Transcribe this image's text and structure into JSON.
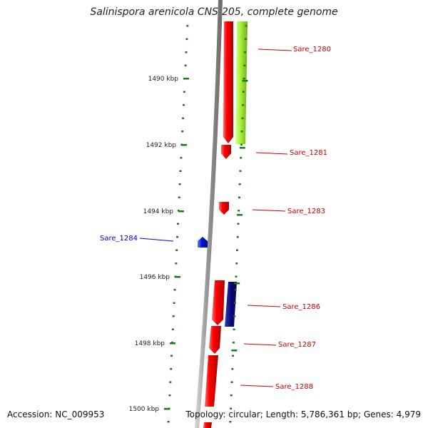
{
  "title": "Salinispora arenicola CNS-205, complete genome",
  "accession": "Accession: NC_009953",
  "topology": "Topology: circular; Length: 5,786,361 bp; Genes: 4,979",
  "colors": {
    "backbone": "#8a8a8a",
    "tick": "#1f7a1f",
    "forward_gene": "#e8000b",
    "reverse_gene": "#0018d8",
    "highlight_gene": "#a6f23a",
    "navy_gene": "#0a0a80",
    "label_red": "#cc0000",
    "label_blue": "#0000cc"
  },
  "kbp_ticks": [
    "1490 kbp",
    "1492 kbp",
    "1494 kbp",
    "1496 kbp",
    "1498 kbp",
    "1500 kbp"
  ],
  "gene_labels": [
    {
      "text": "Sare_1280",
      "color": "red"
    },
    {
      "text": "Sare_1281",
      "color": "red"
    },
    {
      "text": "Sare_1283",
      "color": "red"
    },
    {
      "text": "Sare_1284",
      "color": "blue"
    },
    {
      "text": "Sare_1286",
      "color": "red"
    },
    {
      "text": "Sare_1287",
      "color": "red"
    },
    {
      "text": "Sare_1288",
      "color": "red"
    }
  ]
}
